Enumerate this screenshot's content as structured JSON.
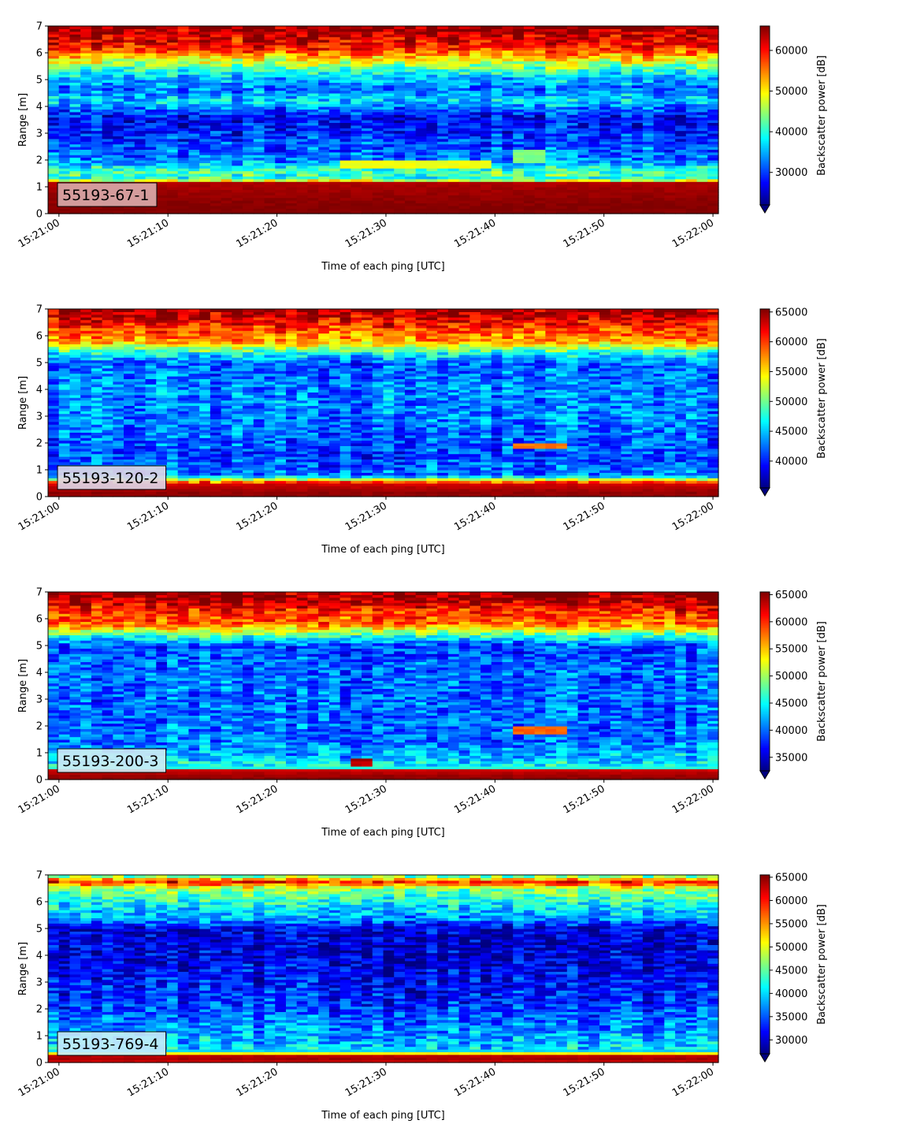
{
  "chart_data": [
    {
      "type": "heatmap",
      "panel_label": "55193-67-1",
      "label_box_color": "#d9a9a9",
      "xlabel": "Time of each ping [UTC]",
      "ylabel": "Range [m]",
      "xticks": [
        "15:21:00",
        "15:21:10",
        "15:21:20",
        "15:21:30",
        "15:21:40",
        "15:21:50",
        "15:22:00"
      ],
      "xlim_seconds": [
        -1,
        60.5
      ],
      "ylim": [
        0,
        7
      ],
      "yticks": [
        0,
        1,
        2,
        3,
        4,
        5,
        6,
        7
      ],
      "colorbar_label": "Backscatter power [dB]",
      "colorbar_range": [
        22000,
        66000
      ],
      "colorbar_ticks": [
        30000,
        40000,
        50000,
        60000
      ],
      "colormap": "jet",
      "profile": [
        {
          "range": 0.0,
          "value": 66000
        },
        {
          "range": 0.2,
          "value": 66000
        },
        {
          "range": 1.15,
          "value": 64000
        },
        {
          "range": 1.3,
          "value": 40000
        },
        {
          "range": 1.6,
          "value": 42000
        },
        {
          "range": 2.0,
          "value": 33000
        },
        {
          "range": 3.0,
          "value": 29000
        },
        {
          "range": 3.6,
          "value": 27000
        },
        {
          "range": 4.2,
          "value": 37000
        },
        {
          "range": 4.7,
          "value": 32000
        },
        {
          "range": 5.2,
          "value": 38000
        },
        {
          "range": 5.7,
          "value": 48000
        },
        {
          "range": 6.2,
          "value": 60000
        },
        {
          "range": 6.7,
          "value": 63000
        },
        {
          "range": 7.0,
          "value": 66000
        }
      ],
      "features": [
        {
          "t0": 26,
          "t1": 40,
          "r0": 1.7,
          "r1": 2.0,
          "value": 49000
        },
        {
          "t0": 42,
          "t1": 44.5,
          "r0": 1.95,
          "r1": 2.35,
          "value": 44000
        }
      ]
    },
    {
      "type": "heatmap",
      "panel_label": "55193-120-2",
      "label_box_color": "#ddd6e6",
      "xlabel": "Time of each ping [UTC]",
      "ylabel": "Range [m]",
      "xticks": [
        "15:21:00",
        "15:21:10",
        "15:21:20",
        "15:21:30",
        "15:21:40",
        "15:21:50",
        "15:22:00"
      ],
      "xlim_seconds": [
        -1,
        60.5
      ],
      "ylim": [
        0,
        7
      ],
      "yticks": [
        0,
        1,
        2,
        3,
        4,
        5,
        6,
        7
      ],
      "colorbar_label": "Backscatter power [dB]",
      "colorbar_range": [
        35500,
        65500
      ],
      "colorbar_ticks": [
        40000,
        45000,
        50000,
        55000,
        60000,
        65000
      ],
      "colormap": "jet",
      "profile": [
        {
          "range": 0.0,
          "value": 65000
        },
        {
          "range": 0.15,
          "value": 65000
        },
        {
          "range": 0.5,
          "value": 63000
        },
        {
          "range": 0.6,
          "value": 55000
        },
        {
          "range": 0.8,
          "value": 43000
        },
        {
          "range": 1.5,
          "value": 41000
        },
        {
          "range": 3.0,
          "value": 43000
        },
        {
          "range": 4.0,
          "value": 43000
        },
        {
          "range": 5.0,
          "value": 42000
        },
        {
          "range": 5.35,
          "value": 47000
        },
        {
          "range": 5.8,
          "value": 57000
        },
        {
          "range": 6.3,
          "value": 60000
        },
        {
          "range": 6.7,
          "value": 63000
        },
        {
          "range": 7.0,
          "value": 65000
        }
      ],
      "features": [
        {
          "t0": 42,
          "t1": 46.5,
          "r0": 1.8,
          "r1": 2.0,
          "value": 58000
        }
      ]
    },
    {
      "type": "heatmap",
      "panel_label": "55193-200-3",
      "label_box_color": "#cdecf4",
      "xlabel": "Time of each ping [UTC]",
      "ylabel": "Range [m]",
      "xticks": [
        "15:21:00",
        "15:21:10",
        "15:21:20",
        "15:21:30",
        "15:21:40",
        "15:21:50",
        "15:22:00"
      ],
      "xlim_seconds": [
        -1,
        60.5
      ],
      "ylim": [
        0,
        7
      ],
      "yticks": [
        0,
        1,
        2,
        3,
        4,
        5,
        6,
        7
      ],
      "colorbar_label": "Backscatter power [dB]",
      "colorbar_range": [
        32500,
        65500
      ],
      "colorbar_ticks": [
        35000,
        40000,
        45000,
        50000,
        55000,
        60000,
        65000
      ],
      "colormap": "jet",
      "profile": [
        {
          "range": 0.0,
          "value": 65000
        },
        {
          "range": 0.1,
          "value": 65000
        },
        {
          "range": 0.35,
          "value": 63000
        },
        {
          "range": 0.45,
          "value": 46000
        },
        {
          "range": 0.8,
          "value": 43000
        },
        {
          "range": 1.5,
          "value": 40000
        },
        {
          "range": 3.0,
          "value": 40000
        },
        {
          "range": 4.0,
          "value": 40000
        },
        {
          "range": 5.0,
          "value": 39000
        },
        {
          "range": 5.35,
          "value": 46000
        },
        {
          "range": 5.8,
          "value": 58000
        },
        {
          "range": 6.3,
          "value": 60000
        },
        {
          "range": 6.7,
          "value": 64000
        },
        {
          "range": 7.0,
          "value": 65000
        }
      ],
      "features": [
        {
          "t0": 42,
          "t1": 46.5,
          "r0": 1.75,
          "r1": 2.0,
          "value": 58000
        },
        {
          "t0": 27,
          "t1": 29,
          "r0": 0.55,
          "r1": 0.75,
          "value": 64000
        }
      ]
    },
    {
      "type": "heatmap",
      "panel_label": "55193-769-4",
      "label_box_color": "#c4ecfa",
      "xlabel": "Time of each ping [UTC]",
      "ylabel": "Range [m]",
      "xticks": [
        "15:21:00",
        "15:21:10",
        "15:21:20",
        "15:21:30",
        "15:21:40",
        "15:21:50",
        "15:22:00"
      ],
      "xlim_seconds": [
        -1,
        60.5
      ],
      "ylim": [
        0,
        7
      ],
      "yticks": [
        0,
        1,
        2,
        3,
        4,
        5,
        6,
        7
      ],
      "colorbar_label": "Backscatter power [dB]",
      "colorbar_range": [
        27000,
        65500
      ],
      "colorbar_ticks": [
        30000,
        35000,
        40000,
        45000,
        50000,
        55000,
        60000,
        65000
      ],
      "colormap": "jet",
      "profile": [
        {
          "range": 0.0,
          "value": 62000
        },
        {
          "range": 0.15,
          "value": 64000
        },
        {
          "range": 0.3,
          "value": 63000
        },
        {
          "range": 0.4,
          "value": 40000
        },
        {
          "range": 1.0,
          "value": 38000
        },
        {
          "range": 2.0,
          "value": 34000
        },
        {
          "range": 3.0,
          "value": 32000
        },
        {
          "range": 4.0,
          "value": 30000
        },
        {
          "range": 5.0,
          "value": 30000
        },
        {
          "range": 5.4,
          "value": 38000
        },
        {
          "range": 6.0,
          "value": 42000
        },
        {
          "range": 6.5,
          "value": 47000
        },
        {
          "range": 6.75,
          "value": 60000
        },
        {
          "range": 7.0,
          "value": 43000
        }
      ],
      "features": []
    }
  ]
}
